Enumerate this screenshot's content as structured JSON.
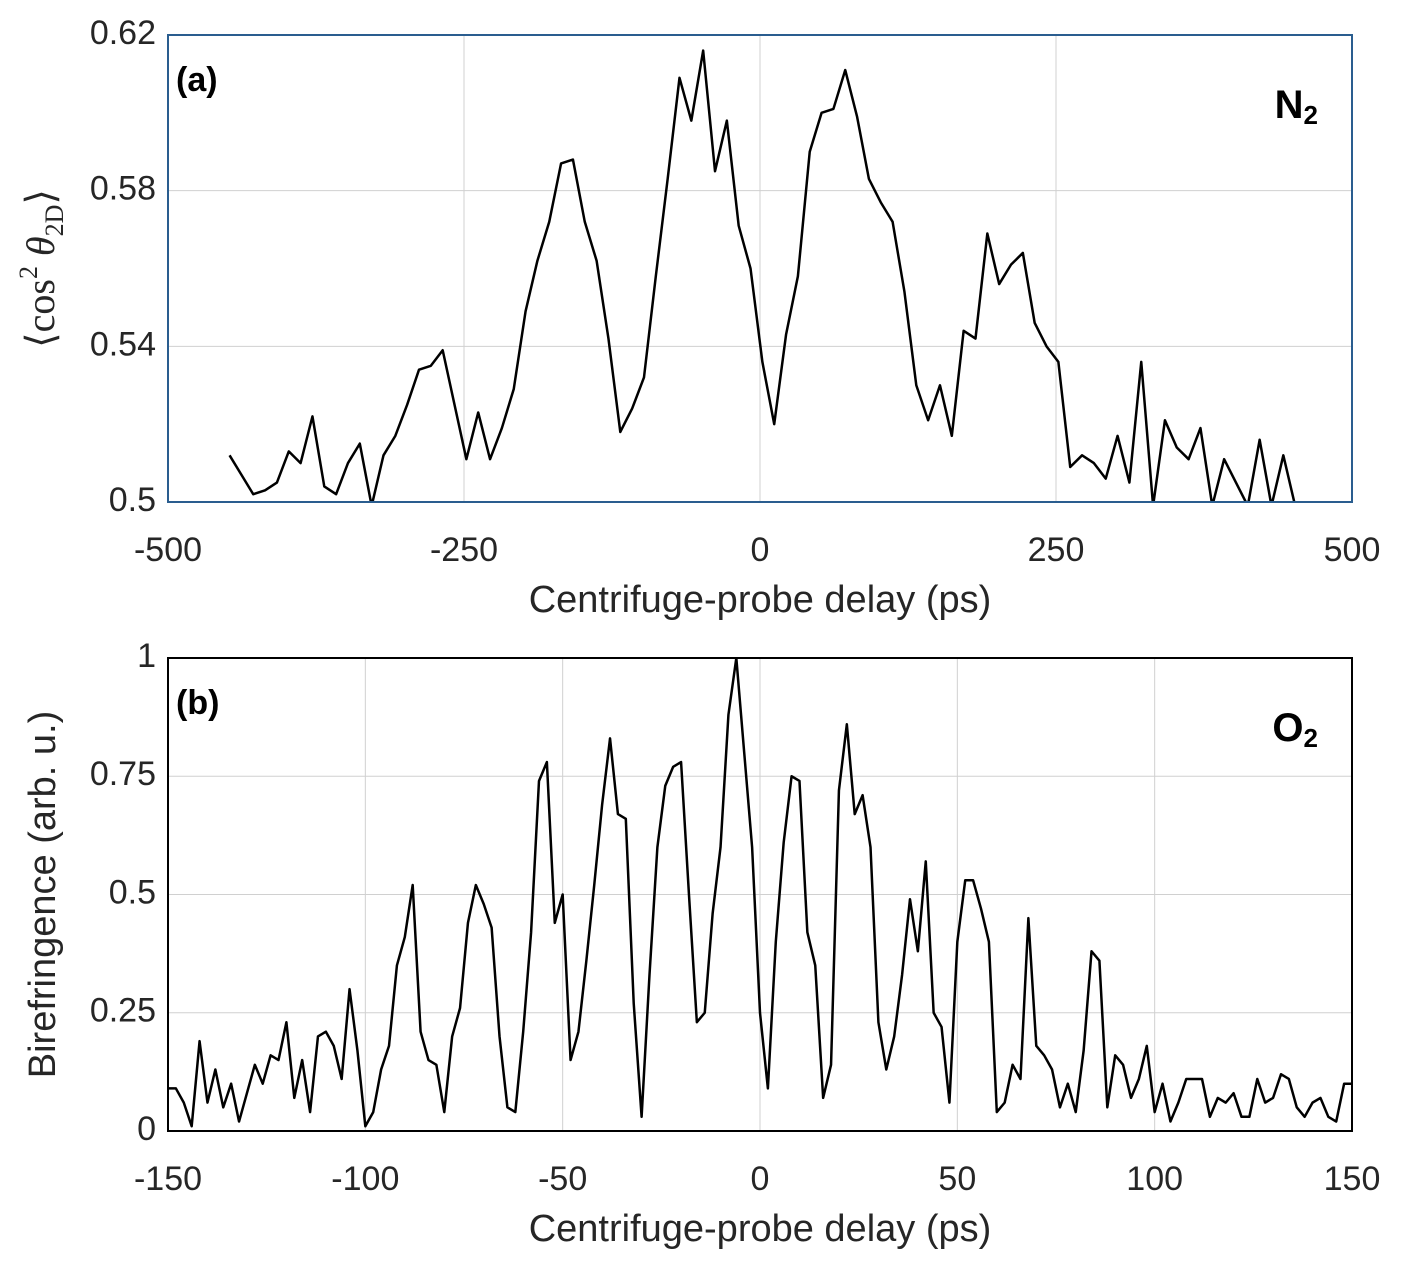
{
  "chart_data": [
    {
      "type": "line",
      "panel_label": "(a)",
      "annotation": [
        "N",
        "2"
      ],
      "ylabel": [
        "⟨cos",
        "2",
        " θ",
        "2D",
        "⟩"
      ],
      "xlabel": "Centrifuge-probe delay (ps)",
      "xlim": [
        -500,
        500
      ],
      "xticks": [
        -500,
        -250,
        0,
        250,
        500
      ],
      "ylim": [
        0.5,
        0.62
      ],
      "yticks": [
        0.5,
        0.54,
        0.58,
        0.62
      ],
      "grid": true,
      "color": "#000000",
      "axis_color": "#2a5d8f",
      "x": [
        -448,
        -438,
        -428,
        -418,
        -408,
        -398,
        -388,
        -378,
        -368,
        -358,
        -348,
        -338,
        -328,
        -318,
        -308,
        -298,
        -288,
        -278,
        -268,
        -258,
        -248,
        -238,
        -228,
        -218,
        -208,
        -198,
        -188,
        -178,
        -168,
        -158,
        -148,
        -138,
        -128,
        -118,
        -108,
        -98,
        -88,
        -78,
        -68,
        -58,
        -48,
        -38,
        -28,
        -18,
        -8,
        2,
        12,
        22,
        32,
        42,
        52,
        62,
        72,
        82,
        92,
        102,
        112,
        122,
        132,
        142,
        152,
        162,
        172,
        182,
        192,
        202,
        212,
        222,
        232,
        242,
        252,
        262,
        272,
        282,
        292,
        302,
        312,
        322,
        332,
        342,
        352,
        362,
        372,
        382,
        392,
        402,
        412,
        422,
        432,
        442,
        452
      ],
      "values": [
        0.512,
        0.507,
        0.502,
        0.503,
        0.505,
        0.513,
        0.51,
        0.522,
        0.504,
        0.502,
        0.51,
        0.515,
        0.499,
        0.512,
        0.517,
        0.525,
        0.534,
        0.535,
        0.539,
        0.525,
        0.511,
        0.523,
        0.511,
        0.519,
        0.529,
        0.549,
        0.562,
        0.572,
        0.587,
        0.588,
        0.572,
        0.562,
        0.542,
        0.518,
        0.524,
        0.532,
        0.558,
        0.583,
        0.609,
        0.598,
        0.616,
        0.585,
        0.598,
        0.571,
        0.56,
        0.536,
        0.52,
        0.543,
        0.558,
        0.59,
        0.6,
        0.601,
        0.611,
        0.599,
        0.583,
        0.577,
        0.572,
        0.554,
        0.53,
        0.521,
        0.53,
        0.517,
        0.544,
        0.542,
        0.569,
        0.556,
        0.561,
        0.564,
        0.546,
        0.54,
        0.536,
        0.509,
        0.512,
        0.51,
        0.506,
        0.517,
        0.505,
        0.536,
        0.499,
        0.521,
        0.514,
        0.511,
        0.519,
        0.499,
        0.511,
        0.505,
        0.499,
        0.516,
        0.499,
        0.512,
        0.499
      ]
    },
    {
      "type": "line",
      "panel_label": "(b)",
      "annotation": [
        "O",
        "2"
      ],
      "ylabel": "Birefringence (arb. u.)",
      "xlabel": "Centrifuge-probe delay (ps)",
      "xlim": [
        -150,
        150
      ],
      "xticks": [
        -150,
        -100,
        -50,
        0,
        50,
        100,
        150
      ],
      "ylim": [
        0,
        1
      ],
      "yticks": [
        0,
        0.25,
        0.5,
        0.75,
        1
      ],
      "grid": true,
      "color": "#000000",
      "axis_color": "#000000",
      "x": [
        -150,
        -148,
        -146,
        -144,
        -142,
        -140,
        -138,
        -136,
        -134,
        -132,
        -130,
        -128,
        -126,
        -124,
        -122,
        -120,
        -118,
        -116,
        -114,
        -112,
        -110,
        -108,
        -106,
        -104,
        -102,
        -100,
        -98,
        -96,
        -94,
        -92,
        -90,
        -88,
        -86,
        -84,
        -82,
        -80,
        -78,
        -76,
        -74,
        -72,
        -70,
        -68,
        -66,
        -64,
        -62,
        -60,
        -58,
        -56,
        -54,
        -52,
        -50,
        -48,
        -46,
        -44,
        -42,
        -40,
        -38,
        -36,
        -34,
        -32,
        -30,
        -28,
        -26,
        -24,
        -22,
        -20,
        -18,
        -16,
        -14,
        -12,
        -10,
        -8,
        -6,
        -4,
        -2,
        0,
        2,
        4,
        6,
        8,
        10,
        12,
        14,
        16,
        18,
        20,
        22,
        24,
        26,
        28,
        30,
        32,
        34,
        36,
        38,
        40,
        42,
        44,
        46,
        48,
        50,
        52,
        54,
        56,
        58,
        60,
        62,
        64,
        66,
        68,
        70,
        72,
        74,
        76,
        78,
        80,
        82,
        84,
        86,
        88,
        90,
        92,
        94,
        96,
        98,
        100,
        102,
        104,
        106,
        108,
        110,
        112,
        114,
        116,
        118,
        120,
        122,
        124,
        126,
        128,
        130,
        132,
        134,
        136,
        138,
        140,
        142,
        144,
        146,
        148,
        150
      ],
      "values": [
        0.09,
        0.09,
        0.06,
        0.01,
        0.19,
        0.06,
        0.13,
        0.05,
        0.1,
        0.02,
        0.08,
        0.14,
        0.1,
        0.16,
        0.15,
        0.23,
        0.07,
        0.15,
        0.04,
        0.2,
        0.21,
        0.18,
        0.11,
        0.3,
        0.17,
        0.01,
        0.04,
        0.13,
        0.18,
        0.35,
        0.41,
        0.52,
        0.21,
        0.15,
        0.14,
        0.04,
        0.2,
        0.26,
        0.44,
        0.52,
        0.48,
        0.43,
        0.2,
        0.05,
        0.04,
        0.21,
        0.42,
        0.74,
        0.78,
        0.44,
        0.5,
        0.15,
        0.21,
        0.36,
        0.52,
        0.69,
        0.83,
        0.67,
        0.66,
        0.27,
        0.03,
        0.33,
        0.6,
        0.73,
        0.77,
        0.78,
        0.5,
        0.23,
        0.25,
        0.46,
        0.6,
        0.88,
        1.0,
        0.8,
        0.6,
        0.25,
        0.09,
        0.4,
        0.61,
        0.75,
        0.74,
        0.42,
        0.35,
        0.07,
        0.14,
        0.72,
        0.86,
        0.67,
        0.71,
        0.6,
        0.23,
        0.13,
        0.2,
        0.33,
        0.49,
        0.38,
        0.57,
        0.25,
        0.22,
        0.06,
        0.4,
        0.53,
        0.53,
        0.47,
        0.4,
        0.04,
        0.06,
        0.14,
        0.11,
        0.45,
        0.18,
        0.16,
        0.13,
        0.05,
        0.1,
        0.04,
        0.17,
        0.38,
        0.36,
        0.05,
        0.16,
        0.14,
        0.07,
        0.11,
        0.18,
        0.04,
        0.1,
        0.02,
        0.06,
        0.11,
        0.11,
        0.11,
        0.03,
        0.07,
        0.06,
        0.08,
        0.03,
        0.03,
        0.11,
        0.06,
        0.07,
        0.12,
        0.11,
        0.05,
        0.03,
        0.06,
        0.07,
        0.03,
        0.02,
        0.1,
        0.1
      ]
    }
  ]
}
